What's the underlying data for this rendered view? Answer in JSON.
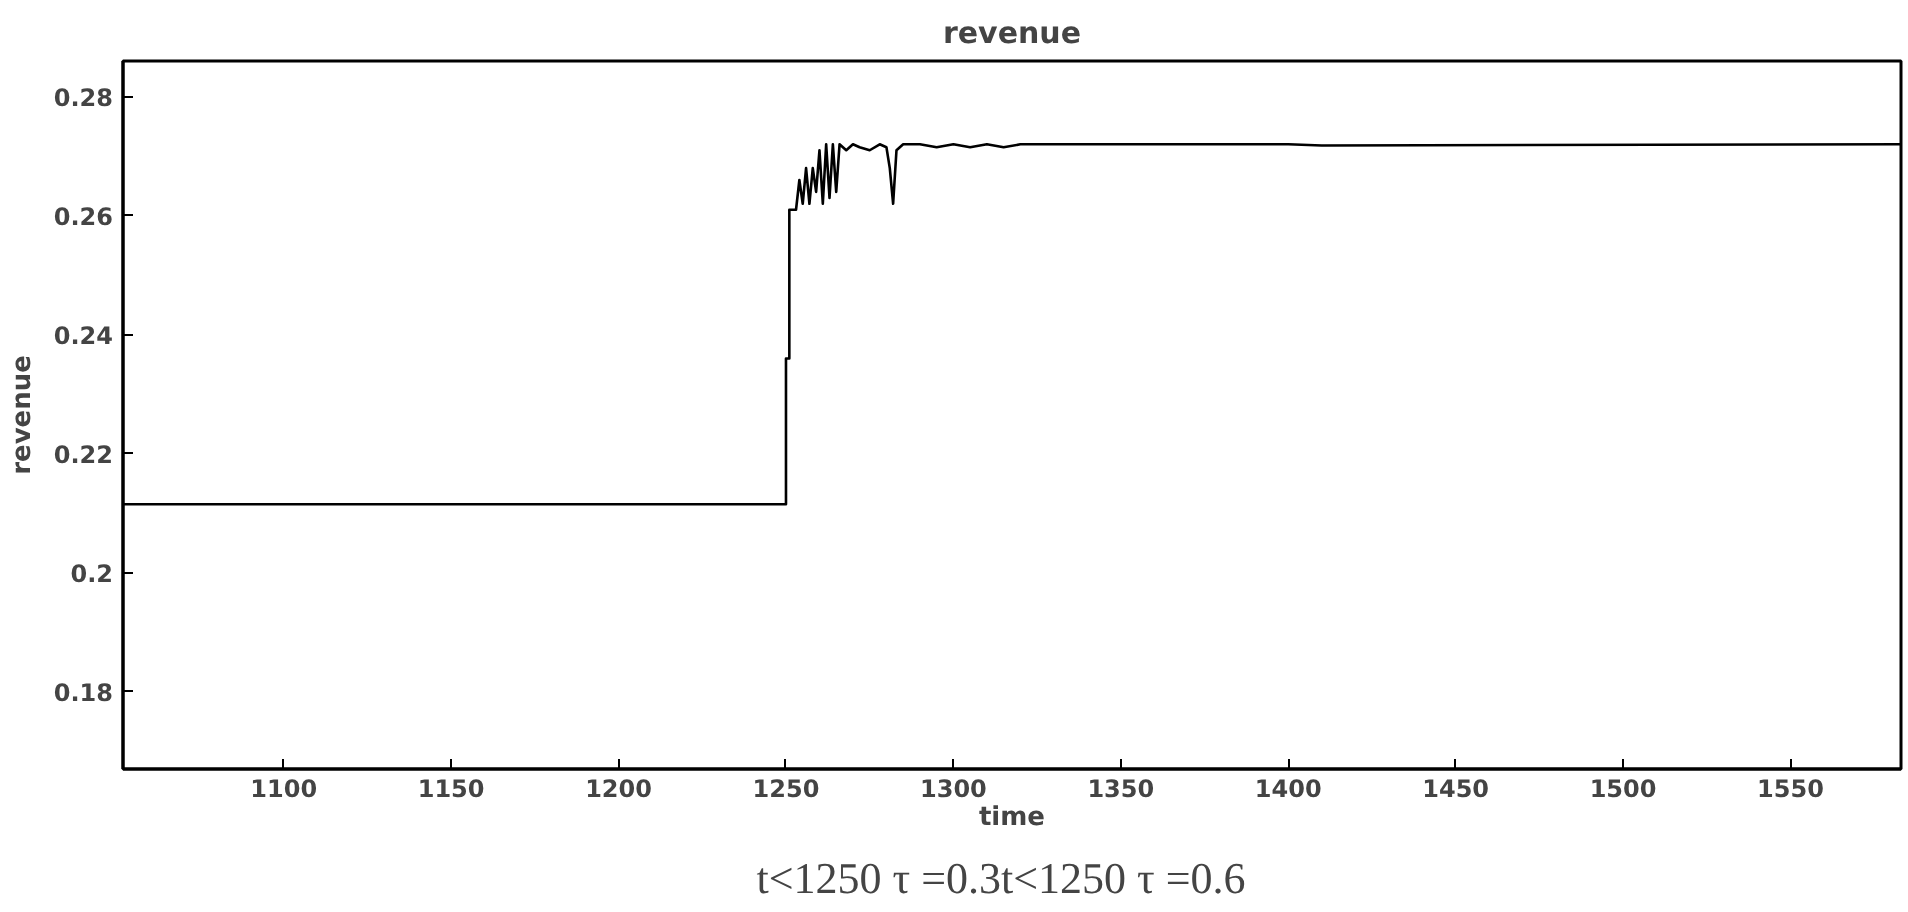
{
  "chart_data": {
    "type": "line",
    "title": "revenue",
    "xlabel": "time",
    "ylabel": "revenue",
    "annotations": [
      "t<1250  τ =0.3t<1250  τ =0.6"
    ],
    "xlim": [
      1052,
      1583
    ],
    "ylim": [
      0.167,
      0.286
    ],
    "xticks": [
      1100,
      1150,
      1200,
      1250,
      1300,
      1350,
      1400,
      1450,
      1500,
      1550
    ],
    "yticks": [
      0.18,
      {
        "value": 0.2,
        "label": "0.2"
      },
      0.22,
      0.24,
      0.26,
      0.28
    ],
    "grid": false,
    "line_style": "solid",
    "series": [
      {
        "color": "#000000",
        "x": [
          1052,
          1250,
          1250,
          1251,
          1251,
          1253,
          1254,
          1255,
          1256,
          1257,
          1258,
          1259,
          1260,
          1261,
          1262,
          1263,
          1264,
          1265,
          1266,
          1268,
          1270,
          1272,
          1275,
          1278,
          1280,
          1281,
          1282,
          1283,
          1285,
          1290,
          1295,
          1300,
          1305,
          1310,
          1315,
          1320,
          1400,
          1410,
          1583
        ],
        "values": [
          0.2115,
          0.2115,
          0.236,
          0.236,
          0.261,
          0.261,
          0.266,
          0.262,
          0.268,
          0.262,
          0.268,
          0.264,
          0.271,
          0.262,
          0.272,
          0.263,
          0.272,
          0.264,
          0.272,
          0.271,
          0.272,
          0.2715,
          0.271,
          0.272,
          0.2715,
          0.268,
          0.262,
          0.271,
          0.272,
          0.272,
          0.2715,
          0.272,
          0.2715,
          0.272,
          0.2715,
          0.272,
          0.272,
          0.2718,
          0.272
        ]
      }
    ]
  }
}
